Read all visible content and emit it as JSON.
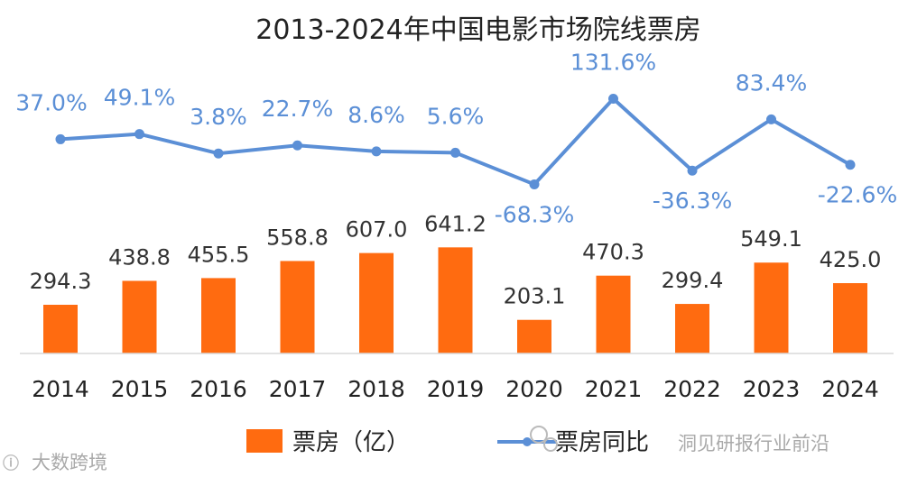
{
  "chart_data": {
    "type": "bar",
    "title": "2013-2024年中国电影市场院线票房",
    "categories": [
      "2014",
      "2015",
      "2016",
      "2017",
      "2018",
      "2019",
      "2020",
      "2021",
      "2022",
      "2023",
      "2024"
    ],
    "series": [
      {
        "name": "票房（亿）",
        "type": "bar",
        "color": "#ff6b10",
        "values": [
          294.3,
          438.8,
          455.5,
          558.8,
          607.0,
          641.2,
          203.1,
          470.3,
          299.4,
          549.1,
          425.0
        ],
        "labels": [
          "294.3",
          "438.8",
          "455.5",
          "558.8",
          "607.0",
          "641.2",
          "203.1",
          "470.3",
          "299.4",
          "549.1",
          "425.0"
        ]
      },
      {
        "name": "票房同比",
        "type": "line",
        "color": "#5b8fd6",
        "values": [
          37.0,
          49.1,
          3.8,
          22.7,
          8.6,
          5.6,
          -68.3,
          131.6,
          -36.3,
          83.4,
          -22.6
        ],
        "labels": [
          "37.0%",
          "49.1%",
          "3.8%",
          "22.7%",
          "8.6%",
          "5.6%",
          "-68.3%",
          "131.6%",
          "-36.3%",
          "83.4%",
          "-22.6%"
        ]
      }
    ],
    "legend": "bottom-center",
    "grid": false
  },
  "watermarks": {
    "left": "大数跨境",
    "right": "洞见研报行业前沿"
  }
}
